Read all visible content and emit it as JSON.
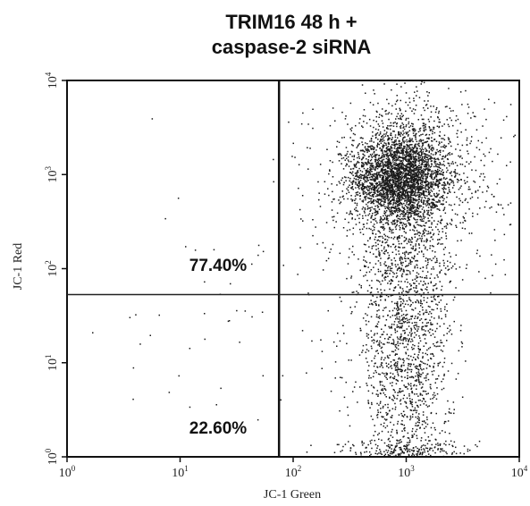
{
  "chart_data": {
    "type": "scatter",
    "title": [
      "TRIM16 48 h +",
      "caspase-2 siRNA"
    ],
    "xlabel": "JC-1 Green",
    "ylabel": "JC-1 Red",
    "x_scale": "log",
    "y_scale": "log",
    "xlim": [
      1,
      10000
    ],
    "ylim": [
      1,
      10000
    ],
    "x_ticks": [
      {
        "base": "10",
        "exp": "0"
      },
      {
        "base": "10",
        "exp": "1"
      },
      {
        "base": "10",
        "exp": "2"
      },
      {
        "base": "10",
        "exp": "3"
      },
      {
        "base": "10",
        "exp": "4"
      }
    ],
    "y_ticks": [
      {
        "base": "10",
        "exp": "0"
      },
      {
        "base": "10",
        "exp": "1"
      },
      {
        "base": "10",
        "exp": "2"
      },
      {
        "base": "10",
        "exp": "3"
      },
      {
        "base": "10",
        "exp": "4"
      }
    ],
    "gates": {
      "x": 75,
      "y": 53
    },
    "quadrants": [
      {
        "position": "top-left",
        "label": "77.40%"
      },
      {
        "position": "bottom-left",
        "label": "22.60%"
      }
    ],
    "populations": [
      {
        "cx": 870,
        "cy": 900,
        "sx": 0.2,
        "sy": 0.22,
        "n": 1900
      },
      {
        "cx": 950,
        "cy": 1100,
        "sx": 0.3,
        "sy": 0.3,
        "n": 1100
      },
      {
        "cx": 950,
        "cy": 200,
        "sx": 0.2,
        "sy": 0.8,
        "n": 1000
      },
      {
        "cx": 1000,
        "cy": 10,
        "sx": 0.2,
        "sy": 0.7,
        "n": 1100
      },
      {
        "cx": 1200,
        "cy": 800,
        "sx": 0.45,
        "sy": 0.55,
        "n": 500
      },
      {
        "cx": 1000,
        "cy": 1.15,
        "sx": 0.3,
        "sy": 0.06,
        "n": 220
      },
      {
        "cx": 60,
        "cy": 20,
        "sx": 0.7,
        "sy": 0.9,
        "n": 80
      }
    ],
    "point_color": "#1a1a1a",
    "grid": false
  }
}
